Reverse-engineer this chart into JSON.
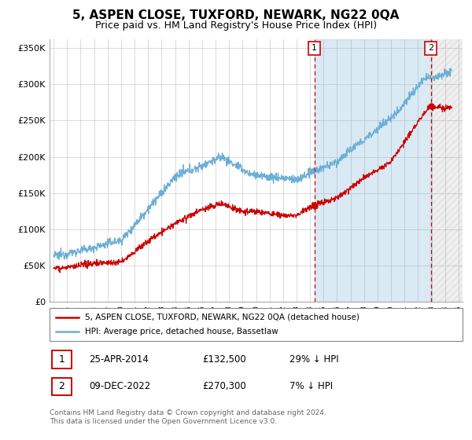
{
  "title": "5, ASPEN CLOSE, TUXFORD, NEWARK, NG22 0QA",
  "subtitle": "Price paid vs. HM Land Registry's House Price Index (HPI)",
  "ylabel_ticks": [
    "£0",
    "£50K",
    "£100K",
    "£150K",
    "£200K",
    "£250K",
    "£300K",
    "£350K"
  ],
  "ytick_values": [
    0,
    50000,
    100000,
    150000,
    200000,
    250000,
    300000,
    350000
  ],
  "ylim": [
    0,
    362000
  ],
  "xlim_start": 1994.7,
  "xlim_end": 2025.3,
  "sale1_date": 2014.32,
  "sale1_price": 132500,
  "sale1_label": "1",
  "sale2_date": 2022.94,
  "sale2_price": 270300,
  "sale2_label": "2",
  "legend_line1": "5, ASPEN CLOSE, TUXFORD, NEWARK, NG22 0QA (detached house)",
  "legend_line2": "HPI: Average price, detached house, Bassetlaw",
  "footer1": "Contains HM Land Registry data © Crown copyright and database right 2024.",
  "footer2": "This data is licensed under the Open Government Licence v3.0.",
  "hpi_color": "#6baed6",
  "price_color": "#cc0000",
  "dashed_color": "#cc0000",
  "shade_color": "#ddeeff",
  "background_color": "#ffffff",
  "grid_color": "#cccccc",
  "title_fontsize": 11,
  "subtitle_fontsize": 9
}
